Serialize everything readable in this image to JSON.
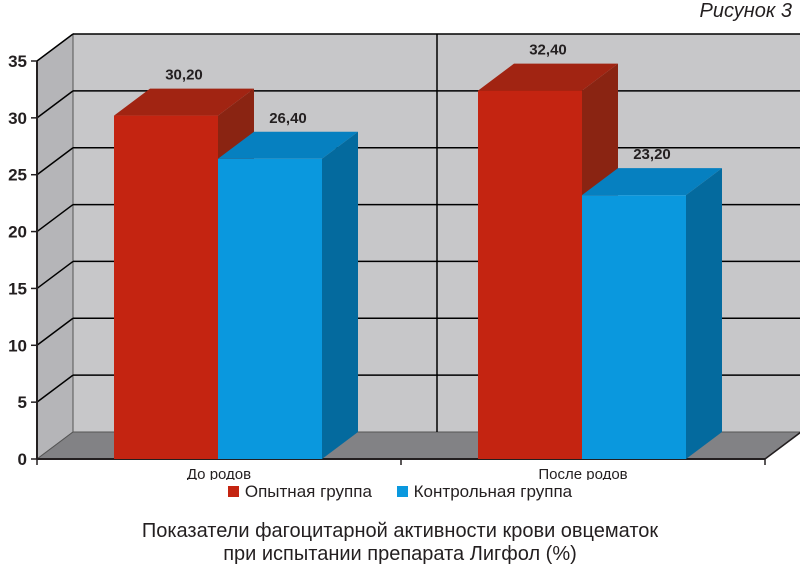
{
  "figure_label": "Рисунок 3",
  "caption_line1": "Показатели фагоцитарной активности крови овцематок",
  "caption_line2": "при испытании препарата Лигфол (%)",
  "colors": {
    "wall": "#c7c7c9",
    "floor": "#828285",
    "grid": "#000000",
    "series1_front": "#c42411",
    "series1_top": "#a12412",
    "series1_side": "#8a2412",
    "series2_front": "#0a98de",
    "series2_top": "#0680c0",
    "series2_side": "#046a9e"
  },
  "chart_data": {
    "type": "bar",
    "categories": [
      "До родов",
      "После родов"
    ],
    "series": [
      {
        "name": "Опытная группа",
        "values": [
          30.2,
          32.4
        ],
        "labels": [
          "30,20",
          "32,40"
        ]
      },
      {
        "name": "Контрольная группа",
        "values": [
          26.4,
          23.2
        ],
        "labels": [
          "26,40",
          "23,20"
        ]
      }
    ],
    "ylim": [
      0,
      35
    ],
    "yticks": [
      "0",
      "5",
      "10",
      "15",
      "20",
      "25",
      "30",
      "35"
    ],
    "grid": true,
    "legend_position": "bottom",
    "xlabel": "",
    "ylabel": ""
  }
}
